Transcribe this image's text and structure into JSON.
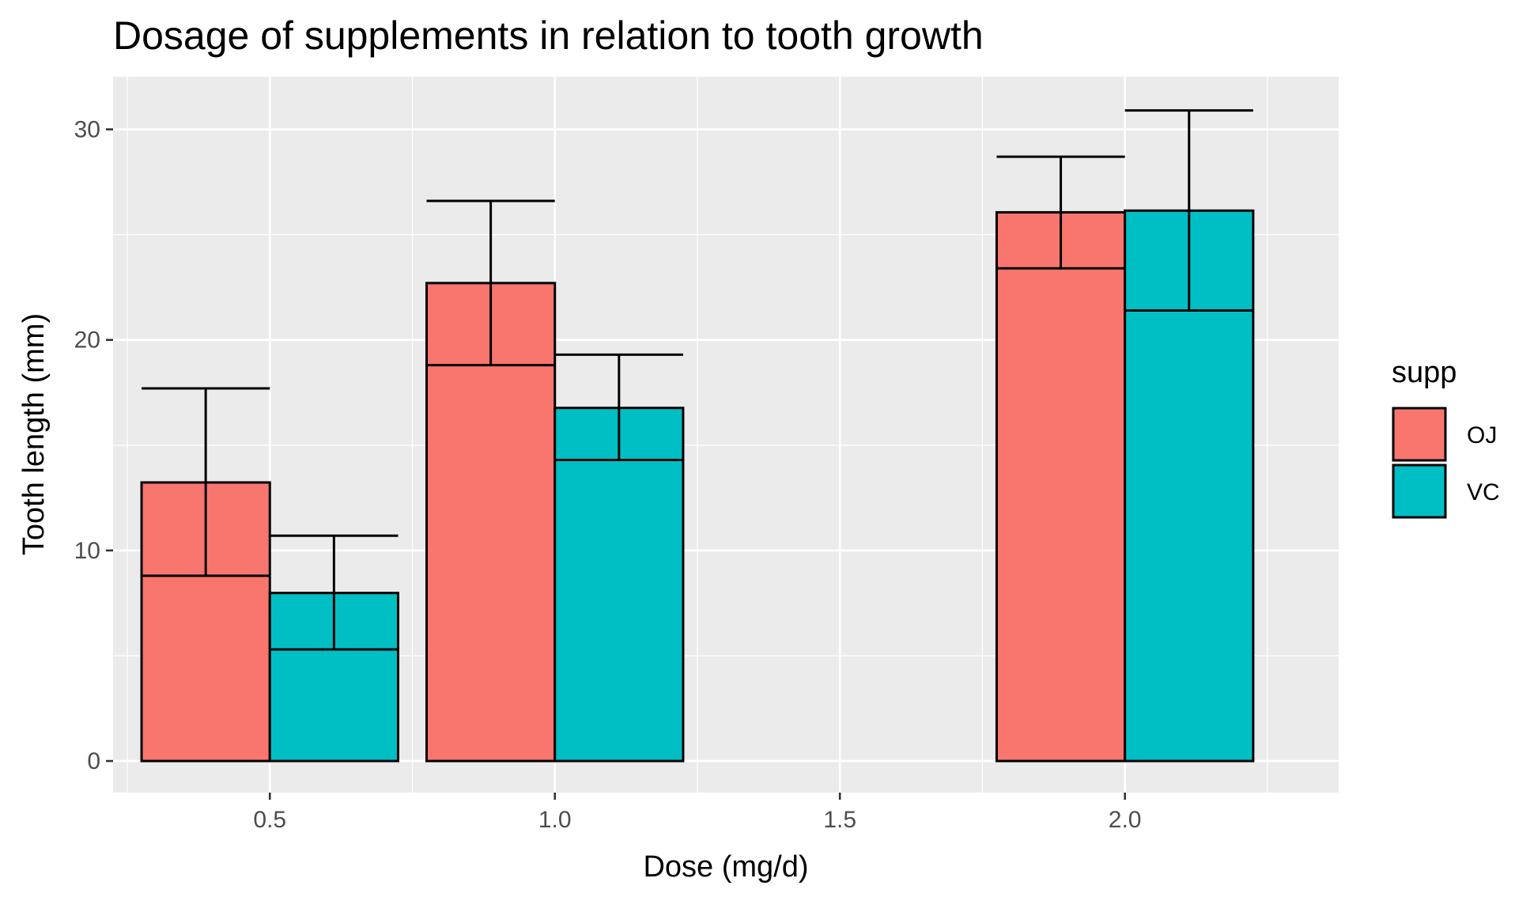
{
  "chart_data": {
    "type": "bar",
    "title": "Dosage of supplements in relation to tooth growth",
    "xlabel": "Dose (mg/d)",
    "ylabel": "Tooth length (mm)",
    "x_ticks": [
      "0.5",
      "1.0",
      "1.5",
      "2.0"
    ],
    "x_tick_values": [
      0.5,
      1.0,
      1.5,
      2.0
    ],
    "xlim": [
      0.225,
      2.375
    ],
    "y_ticks": [
      0,
      10,
      20,
      30
    ],
    "ylim": [
      -1.5,
      32.5
    ],
    "grid": true,
    "legend": {
      "title": "supp",
      "position": "right",
      "entries": [
        "OJ",
        "VC"
      ]
    },
    "bar_width": 0.225,
    "series": [
      {
        "name": "OJ",
        "color": "#F8766D",
        "x": [
          0.5,
          1.0,
          2.0
        ],
        "values": [
          13.23,
          22.7,
          26.06
        ],
        "error_low": [
          8.8,
          18.8,
          23.4
        ],
        "error_high": [
          17.7,
          26.6,
          28.7
        ]
      },
      {
        "name": "VC",
        "color": "#00BFC4",
        "x": [
          0.5,
          1.0,
          2.0
        ],
        "values": [
          7.98,
          16.77,
          26.14
        ],
        "error_low": [
          5.3,
          14.3,
          21.4
        ],
        "error_high": [
          10.7,
          19.3,
          30.9
        ]
      }
    ]
  }
}
